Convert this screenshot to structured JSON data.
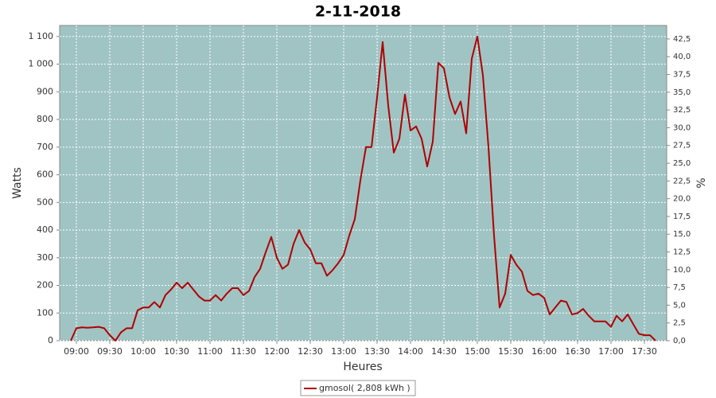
{
  "chart_data": {
    "type": "line",
    "title": "2-11-2018",
    "xlabel": "Heures",
    "ylabel": "Watts",
    "y2label": "%",
    "x": [
      "08:55",
      "09:00",
      "09:05",
      "09:10",
      "09:15",
      "09:20",
      "09:25",
      "09:30",
      "09:35",
      "09:40",
      "09:45",
      "09:50",
      "09:55",
      "10:00",
      "10:05",
      "10:10",
      "10:15",
      "10:20",
      "10:25",
      "10:30",
      "10:35",
      "10:40",
      "10:45",
      "10:50",
      "10:55",
      "11:00",
      "11:05",
      "11:10",
      "11:15",
      "11:20",
      "11:25",
      "11:30",
      "11:35",
      "11:40",
      "11:45",
      "11:50",
      "11:55",
      "12:00",
      "12:05",
      "12:10",
      "12:15",
      "12:20",
      "12:25",
      "12:30",
      "12:35",
      "12:40",
      "12:45",
      "12:50",
      "12:55",
      "13:00",
      "13:05",
      "13:10",
      "13:15",
      "13:20",
      "13:25",
      "13:30",
      "13:35",
      "13:40",
      "13:45",
      "13:50",
      "13:55",
      "14:00",
      "14:05",
      "14:10",
      "14:15",
      "14:20",
      "14:25",
      "14:30",
      "14:35",
      "14:40",
      "14:45",
      "14:50",
      "14:55",
      "15:00",
      "15:05",
      "15:10",
      "15:15",
      "15:20",
      "15:25",
      "15:30",
      "15:35",
      "15:40",
      "15:45",
      "15:50",
      "15:55",
      "16:00",
      "16:05",
      "16:10",
      "16:15",
      "16:20",
      "16:25",
      "16:30",
      "16:35",
      "16:40",
      "16:45",
      "16:50",
      "16:55",
      "17:00",
      "17:05",
      "17:10",
      "17:15",
      "17:20",
      "17:25",
      "17:30",
      "17:35",
      "17:40"
    ],
    "series": [
      {
        "name": "gmosol( 2,808 kWh )",
        "color": "#b00000",
        "values": [
          0,
          45,
          48,
          47,
          48,
          50,
          45,
          20,
          0,
          30,
          45,
          45,
          110,
          120,
          120,
          140,
          120,
          165,
          185,
          210,
          190,
          210,
          185,
          160,
          145,
          145,
          165,
          145,
          170,
          190,
          190,
          165,
          180,
          230,
          260,
          320,
          375,
          300,
          260,
          275,
          350,
          400,
          355,
          330,
          280,
          280,
          235,
          255,
          280,
          310,
          380,
          440,
          580,
          700,
          700,
          880,
          1080,
          850,
          680,
          730,
          890,
          760,
          775,
          730,
          630,
          720,
          1005,
          985,
          880,
          820,
          865,
          750,
          1020,
          1100,
          960,
          700,
          380,
          120,
          170,
          310,
          275,
          250,
          180,
          165,
          170,
          155,
          95,
          120,
          145,
          140,
          95,
          100,
          115,
          90,
          70,
          70,
          70,
          50,
          90,
          70,
          95,
          60,
          25,
          20,
          20,
          0
        ]
      }
    ],
    "xlim": [
      "08:45",
      "17:50"
    ],
    "xticks": [
      "09:00",
      "09:30",
      "10:00",
      "10:30",
      "11:00",
      "11:30",
      "12:00",
      "12:30",
      "13:00",
      "13:30",
      "14:00",
      "14:30",
      "15:00",
      "15:30",
      "16:00",
      "16:30",
      "17:00",
      "17:30"
    ],
    "ylim": [
      0,
      1140
    ],
    "yticks": [
      0,
      100,
      200,
      300,
      400,
      500,
      600,
      700,
      800,
      900,
      {
        "value": 1000,
        "label": "1 000"
      },
      {
        "value": 1100,
        "label": "1 100"
      }
    ],
    "y2lim": [
      0,
      44.4
    ],
    "y2ticks": [
      {
        "value": 0,
        "label": "0,0"
      },
      {
        "value": 2.5,
        "label": "2,5"
      },
      {
        "value": 5,
        "label": "5,0"
      },
      {
        "value": 7.5,
        "label": "7,5"
      },
      {
        "value": 10,
        "label": "10,0"
      },
      {
        "value": 12.5,
        "label": "12,5"
      },
      {
        "value": 15,
        "label": "15,0"
      },
      {
        "value": 17.5,
        "label": "17,5"
      },
      {
        "value": 20,
        "label": "20,0"
      },
      {
        "value": 22.5,
        "label": "22,5"
      },
      {
        "value": 25,
        "label": "25,0"
      },
      {
        "value": 27.5,
        "label": "27,5"
      },
      {
        "value": 30,
        "label": "30,0"
      },
      {
        "value": 32.5,
        "label": "32,5"
      },
      {
        "value": 35,
        "label": "35,0"
      },
      {
        "value": 37.5,
        "label": "37,5"
      },
      {
        "value": 40,
        "label": "40,0"
      },
      {
        "value": 42.5,
        "label": "42,5"
      }
    ],
    "grid": true,
    "plot_background": "#a0c4c4",
    "legend": "bottom"
  }
}
